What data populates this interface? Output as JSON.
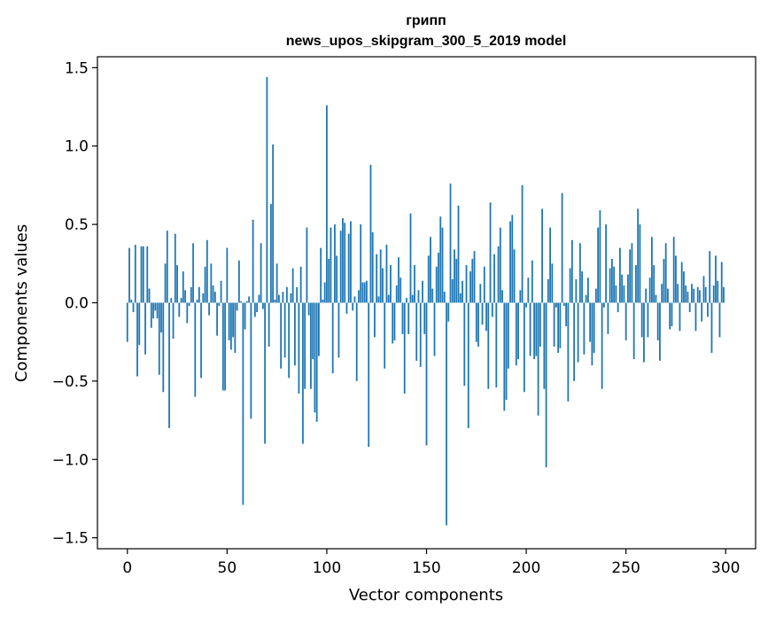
{
  "chart_data": {
    "type": "bar",
    "title": "грипп",
    "subtitle": "news_upos_skipgram_300_5_2019 model",
    "xlabel": "Vector components",
    "ylabel": "Components values",
    "xlim": [
      -15,
      315
    ],
    "ylim": [
      -1.57,
      1.57
    ],
    "xticks": [
      0,
      50,
      100,
      150,
      200,
      250,
      300
    ],
    "xtick_labels": [
      "0",
      "50",
      "100",
      "150",
      "200",
      "250",
      "300"
    ],
    "yticks": [
      -1.5,
      -1.0,
      -0.5,
      0.0,
      0.5,
      1.0,
      1.5
    ],
    "ytick_labels": [
      "−1.5",
      "−1.0",
      "−0.5",
      "0.0",
      "0.5",
      "1.0",
      "1.5"
    ],
    "bar_color": "#1f77b4",
    "x": "0..299 (component index)",
    "values": [
      -0.25,
      0.35,
      0.02,
      -0.06,
      0.37,
      -0.47,
      -0.27,
      0.36,
      0.36,
      -0.33,
      0.36,
      0.09,
      -0.16,
      -0.1,
      -0.05,
      -0.1,
      -0.46,
      -0.19,
      -0.57,
      0.25,
      0.46,
      -0.8,
      0.03,
      -0.23,
      0.44,
      0.24,
      -0.09,
      0.03,
      0.2,
      0.08,
      -0.13,
      -0.02,
      0.1,
      0.38,
      -0.6,
      0.02,
      0.1,
      -0.48,
      0.06,
      0.23,
      0.4,
      -0.08,
      0.25,
      0.11,
      0.07,
      -0.21,
      -0.02,
      0.14,
      -0.56,
      -0.56,
      0.35,
      -0.24,
      -0.3,
      -0.22,
      -0.32,
      -0.05,
      0.27,
      0.01,
      -1.29,
      -0.17,
      0.01,
      0.04,
      -0.74,
      0.53,
      -0.09,
      -0.06,
      0.05,
      0.38,
      -0.04,
      -0.9,
      1.44,
      -0.28,
      0.63,
      1.01,
      0.02,
      0.25,
      0.05,
      -0.42,
      0.07,
      -0.35,
      0.1,
      -0.48,
      0.06,
      0.22,
      -0.4,
      0.1,
      -0.58,
      0.23,
      -0.9,
      -0.55,
      0.48,
      -0.08,
      -0.55,
      -0.36,
      -0.7,
      -0.76,
      -0.34,
      0.35,
      0.02,
      0.13,
      1.26,
      0.28,
      0.48,
      -0.45,
      0.5,
      0.3,
      -0.35,
      0.46,
      0.54,
      0.51,
      -0.07,
      0.44,
      0.52,
      -0.05,
      0.04,
      -0.5,
      0.08,
      0.5,
      0.13,
      0.13,
      0.14,
      -0.92,
      0.88,
      0.45,
      -0.22,
      0.31,
      0.04,
      0.34,
      0.22,
      -0.42,
      0.37,
      0.05,
      0.24,
      -0.26,
      -0.24,
      0.11,
      0.29,
      0.16,
      -0.2,
      -0.58,
      0.03,
      -0.2,
      0.57,
      0.05,
      0.24,
      -0.37,
      0.08,
      -0.41,
      0.14,
      -0.2,
      -0.91,
      0.3,
      0.42,
      0.09,
      -0.34,
      0.23,
      0.32,
      0.55,
      0.48,
      0.07,
      -1.42,
      -0.12,
      0.76,
      0.15,
      0.34,
      0.28,
      0.62,
      0.06,
      0.14,
      -0.53,
      0.24,
      -0.8,
      0.2,
      0.28,
      0.33,
      -0.25,
      -0.28,
      0.12,
      -0.14,
      0.23,
      -0.18,
      -0.55,
      0.64,
      -0.09,
      0.31,
      -0.54,
      0.36,
      0.48,
      0.08,
      -0.69,
      -0.62,
      -0.42,
      0.52,
      0.56,
      0.34,
      -0.4,
      -0.36,
      0.08,
      0.75,
      -0.57,
      -0.03,
      0.16,
      -0.34,
      0.27,
      -0.36,
      -0.34,
      -0.72,
      -0.28,
      0.6,
      -0.55,
      -1.05,
      0.15,
      0.48,
      0.25,
      -0.28,
      -0.03,
      -0.32,
      -0.29,
      0.7,
      -0.02,
      -0.15,
      -0.63,
      0.22,
      0.4,
      -0.5,
      0.15,
      -0.38,
      0.38,
      0.2,
      -0.33,
      0.05,
      0.16,
      -0.25,
      -0.4,
      -0.32,
      0.09,
      0.48,
      0.59,
      -0.55,
      -0.03,
      0.5,
      -0.2,
      0.22,
      0.28,
      0.23,
      0.11,
      -0.06,
      0.35,
      0.18,
      0.11,
      -0.24,
      0.18,
      0.34,
      0.38,
      -0.36,
      0.24,
      0.6,
      0.5,
      -0.22,
      -0.38,
      0.09,
      -0.22,
      0.16,
      0.42,
      0.24,
      0.05,
      -0.24,
      -0.37,
      0.12,
      0.28,
      0.38,
      0.09,
      -0.17,
      -0.15,
      0.42,
      0.3,
      0.12,
      -0.18,
      0.26,
      0.2,
      0.11,
      0.07,
      -0.06,
      0.12,
      0.09,
      -0.18,
      0.1,
      0.08,
      -0.12,
      0.17,
      0.1,
      -0.09,
      0.33,
      -0.32,
      0.11,
      0.3,
      0.14,
      -0.22,
      0.26,
      0.1
    ]
  }
}
